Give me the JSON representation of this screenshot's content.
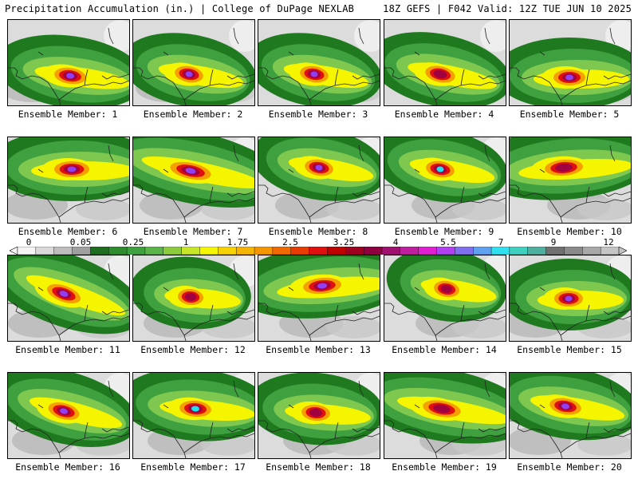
{
  "header": {
    "title": "Precipitation Accumulation (in.) | College of DuPage NEXLAB",
    "valid": "18Z GEFS | F042 Valid: 12Z TUE JUN 10 2025"
  },
  "colors": {
    "trace": "#d9d9d9",
    "light": "#b3b3b3",
    "green_dark": "#1f7a1f",
    "green": "#3ea03e",
    "green_light": "#7ec850",
    "yellow": "#f5f500",
    "orange": "#f5a000",
    "red": "#e01010",
    "maroon": "#a00040",
    "magenta": "#d020c0",
    "violet": "#9040f0",
    "cyan": "#20e0f0"
  },
  "colorbar": {
    "labels": [
      "0",
      "0.05",
      "0.25",
      "1",
      "1.75",
      "2.5",
      "3.25",
      "4",
      "5.5",
      "7",
      "9",
      "12"
    ],
    "colors": [
      "#f4f4f4",
      "#d9d9d9",
      "#bdbdbd",
      "#a0a0a0",
      "#1f6e1f",
      "#2e8b2e",
      "#3ea03e",
      "#5bb44a",
      "#8ccc3c",
      "#c8e628",
      "#f5f500",
      "#f5d200",
      "#f5b400",
      "#f59600",
      "#f06a00",
      "#e83c00",
      "#e01010",
      "#c00000",
      "#a00020",
      "#900040",
      "#a01070",
      "#c020a0",
      "#e020d0",
      "#b040f0",
      "#8070f0",
      "#60a0f0",
      "#30e0f0",
      "#40d0c0",
      "#50b0a0",
      "#707070",
      "#8a8a8a",
      "#a8a8a8",
      "#c4c4c4"
    ]
  },
  "members": [
    {
      "label": "Ensemble Member: 1",
      "cx": 78,
      "cy": 70,
      "sx": 1.0,
      "rot": 8,
      "peak": "violet"
    },
    {
      "label": "Ensemble Member: 2",
      "cx": 70,
      "cy": 68,
      "sx": 0.9,
      "rot": 10,
      "peak": "violet"
    },
    {
      "label": "Ensemble Member: 3",
      "cx": 70,
      "cy": 68,
      "sx": 0.9,
      "rot": 10,
      "peak": "violet"
    },
    {
      "label": "Ensemble Member: 4",
      "cx": 70,
      "cy": 68,
      "sx": 0.95,
      "rot": 12,
      "peak": "maroon"
    },
    {
      "label": "Ensemble Member: 5",
      "cx": 75,
      "cy": 72,
      "sx": 1.0,
      "rot": 0,
      "peak": "violet"
    },
    {
      "label": "Ensemble Member: 6",
      "cx": 80,
      "cy": 40,
      "sx": 1.1,
      "rot": 0,
      "peak": "violet"
    },
    {
      "label": "Ensemble Member: 7",
      "cx": 72,
      "cy": 42,
      "sx": 1.3,
      "rot": 12,
      "peak": "violet"
    },
    {
      "label": "Ensemble Member: 8",
      "cx": 76,
      "cy": 38,
      "sx": 0.9,
      "rot": 10,
      "peak": "violet"
    },
    {
      "label": "Ensemble Member: 9",
      "cx": 70,
      "cy": 40,
      "sx": 0.9,
      "rot": 10,
      "peak": "cyan"
    },
    {
      "label": "Ensemble Member: 10",
      "cx": 68,
      "cy": 38,
      "sx": 1.2,
      "rot": -4,
      "peak": "maroon"
    },
    {
      "label": "Ensemble Member: 11",
      "cx": 70,
      "cy": 48,
      "sx": 1.1,
      "rot": 20,
      "peak": "violet"
    },
    {
      "label": "Ensemble Member: 12",
      "cx": 72,
      "cy": 52,
      "sx": 0.8,
      "rot": 5,
      "peak": "maroon"
    },
    {
      "label": "Ensemble Member: 13",
      "cx": 80,
      "cy": 38,
      "sx": 1.2,
      "rot": -5,
      "peak": "violet"
    },
    {
      "label": "Ensemble Member: 14",
      "cx": 78,
      "cy": 42,
      "sx": 0.8,
      "rot": 10,
      "peak": "maroon"
    },
    {
      "label": "Ensemble Member: 15",
      "cx": 74,
      "cy": 54,
      "sx": 0.9,
      "rot": 0,
      "peak": "violet"
    },
    {
      "label": "Ensemble Member: 16",
      "cx": 70,
      "cy": 48,
      "sx": 1.0,
      "rot": 15,
      "peak": "violet"
    },
    {
      "label": "Ensemble Member: 17",
      "cx": 78,
      "cy": 45,
      "sx": 1.0,
      "rot": 5,
      "peak": "cyan"
    },
    {
      "label": "Ensemble Member: 18",
      "cx": 72,
      "cy": 50,
      "sx": 0.9,
      "rot": 5,
      "peak": "maroon"
    },
    {
      "label": "Ensemble Member: 19",
      "cx": 72,
      "cy": 45,
      "sx": 1.2,
      "rot": 10,
      "peak": "maroon"
    },
    {
      "label": "Ensemble Member: 20",
      "cx": 70,
      "cy": 42,
      "sx": 1.0,
      "rot": 10,
      "peak": "violet"
    }
  ]
}
